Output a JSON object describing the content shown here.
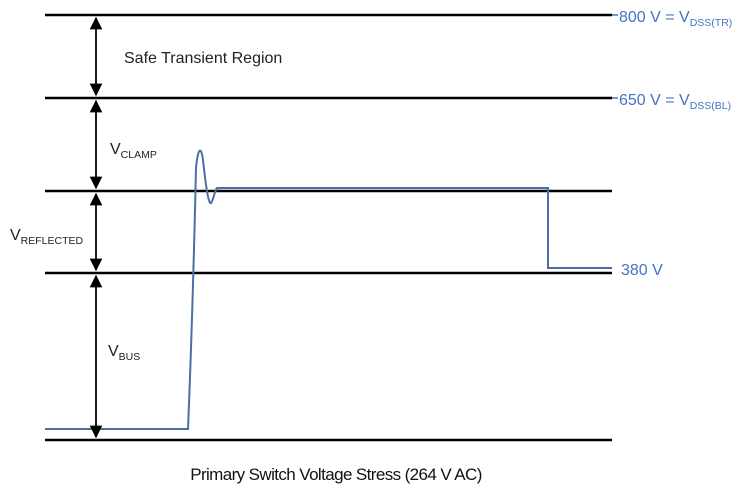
{
  "colors": {
    "line": "#000000",
    "waveform": "#4a6fa5",
    "right_label": "#4472c4",
    "text": "#222222"
  },
  "levels": {
    "tr": {
      "main": "800 V = V",
      "sub": "DSS(TR)"
    },
    "bl": {
      "main": "650 V = V",
      "sub": "DSS(BL)"
    },
    "bus": {
      "main": "380 V"
    }
  },
  "regions": {
    "safe_transient": "Safe Transient Region",
    "clamp": {
      "main": "V",
      "sub": "CLAMP"
    },
    "reflected": {
      "main": "V",
      "sub": "REFLECTED"
    },
    "bus": {
      "main": "V",
      "sub": "BUS"
    }
  },
  "caption": "Primary Switch Voltage Stress (264 V  AC)"
}
